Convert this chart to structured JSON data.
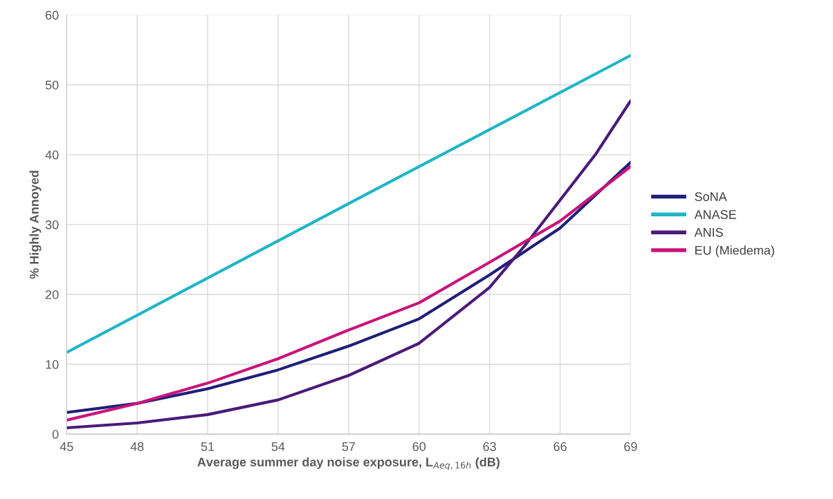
{
  "chart_data": {
    "type": "line",
    "xlabel": "Average summer day noise exposure, L$_{Aeq,16h}$ (dB)",
    "ylabel": "% Highly Annoyed",
    "xlim": [
      45,
      69
    ],
    "xticks": [
      45,
      48,
      51,
      54,
      57,
      60,
      63,
      66,
      69
    ],
    "ylim": [
      0,
      60
    ],
    "yticks": [
      0,
      10,
      20,
      30,
      40,
      50,
      60
    ],
    "grid": true,
    "legend": "right",
    "marker": "none",
    "line_style": "solid",
    "series": [
      {
        "name": "SoNA",
        "color": "#1f1f7a",
        "x": [
          45,
          48,
          51,
          54,
          57,
          60,
          63,
          66,
          69
        ],
        "values": [
          3.1,
          4.4,
          6.5,
          9.2,
          12.6,
          16.5,
          22.8,
          29.5,
          38.9
        ]
      },
      {
        "name": "ANASE",
        "color": "#1fb5c8",
        "x": [
          45,
          57,
          69
        ],
        "values": [
          11.7,
          33.0,
          54.2
        ]
      },
      {
        "name": "ANIS",
        "color": "#4b1a7a",
        "x": [
          45,
          48,
          51,
          54,
          57,
          60,
          63,
          64.5,
          66,
          67.5,
          69
        ],
        "values": [
          0.9,
          1.6,
          2.8,
          4.9,
          8.4,
          13.0,
          21.0,
          27.0,
          33.5,
          40.0,
          47.7
        ]
      },
      {
        "name": "EU (Miedema)",
        "color": "#c8157a",
        "x": [
          45,
          48,
          51,
          54,
          57,
          60,
          63,
          66,
          69
        ],
        "values": [
          2.0,
          4.4,
          7.3,
          10.8,
          14.9,
          18.8,
          24.6,
          30.5,
          38.3
        ]
      }
    ]
  }
}
